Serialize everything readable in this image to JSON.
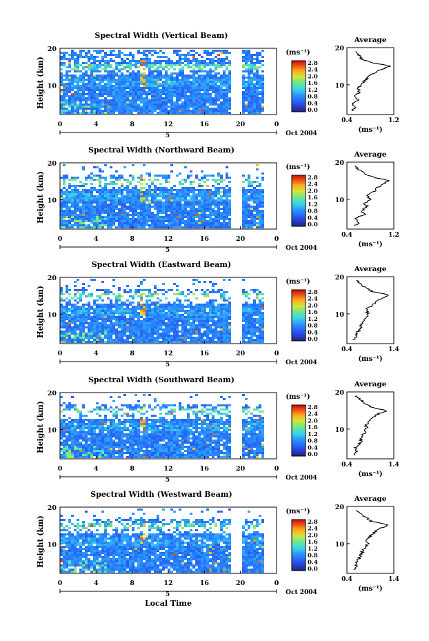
{
  "figure": {
    "xlabel": "Local Time",
    "date_label": "Oct 2004",
    "bracket_label": "5",
    "units_label": "(ms⁻¹)",
    "avg_title": "Average"
  },
  "chart_data": [
    {
      "type": "heatmap",
      "title": "Spectral Width (Vertical Beam)",
      "ylabel": "Height (km)",
      "xlabel": "",
      "x_ticks": [
        "0",
        "4",
        "8",
        "12",
        "16",
        "20",
        "0"
      ],
      "y_ticks": [
        "10",
        "20"
      ],
      "xlim": [
        0,
        24
      ],
      "ylim": [
        2,
        20
      ],
      "colorbar": {
        "label": "(ms⁻¹)",
        "ticks": [
          "0.0",
          "0.4",
          "0.8",
          "1.2",
          "1.6",
          "2.0",
          "2.4",
          "2.8"
        ],
        "range": [
          0,
          2.8
        ]
      },
      "data_gap_hours": [
        18.8,
        20
      ],
      "average_profile": {
        "title": "Average",
        "xlabel": "(ms⁻¹)",
        "x_ticks": [
          "0.4",
          "1.2"
        ],
        "xlim": [
          0.4,
          1.2
        ],
        "y_ticks": [
          "10",
          "20"
        ],
        "height_km": [
          3,
          4,
          5,
          6,
          7,
          8,
          9,
          10,
          11,
          12,
          13,
          14,
          15,
          16,
          17,
          18,
          19
        ],
        "width_ms": [
          0.5,
          0.55,
          0.5,
          0.6,
          0.55,
          0.62,
          0.58,
          0.65,
          0.7,
          0.75,
          0.85,
          0.95,
          1.15,
          0.8,
          0.65,
          0.6,
          0.55
        ]
      }
    },
    {
      "type": "heatmap",
      "title": "Spectral Width (Northward Beam)",
      "ylabel": "Height (km)",
      "xlabel": "",
      "x_ticks": [
        "0",
        "4",
        "8",
        "12",
        "16",
        "20",
        "0"
      ],
      "y_ticks": [
        "10",
        "20"
      ],
      "xlim": [
        0,
        24
      ],
      "ylim": [
        2,
        20
      ],
      "colorbar": {
        "label": "(ms⁻¹)",
        "ticks": [
          "0.0",
          "0.4",
          "0.8",
          "1.2",
          "1.6",
          "2.0",
          "2.4",
          "2.8"
        ],
        "range": [
          0,
          2.8
        ]
      },
      "data_gap_hours": [
        18.8,
        20
      ],
      "average_profile": {
        "title": "Average",
        "xlabel": "(ms⁻¹)",
        "x_ticks": [
          "0.4",
          "1.2"
        ],
        "xlim": [
          0.4,
          1.2
        ],
        "y_ticks": [
          "10",
          "20"
        ],
        "height_km": [
          3,
          4,
          5,
          6,
          7,
          8,
          9,
          10,
          11,
          12,
          13,
          14,
          15,
          16,
          17,
          18,
          19
        ],
        "width_ms": [
          0.55,
          0.6,
          0.55,
          0.7,
          0.65,
          0.75,
          0.7,
          0.8,
          0.75,
          0.85,
          0.9,
          1.0,
          1.1,
          0.85,
          0.7,
          0.6,
          0.55
        ]
      }
    },
    {
      "type": "heatmap",
      "title": "Spectral Width (Eastward Beam)",
      "ylabel": "Height (km)",
      "xlabel": "",
      "x_ticks": [
        "0",
        "4",
        "8",
        "12",
        "16",
        "20",
        "0"
      ],
      "y_ticks": [
        "10",
        "20"
      ],
      "xlim": [
        0,
        24
      ],
      "ylim": [
        2,
        20
      ],
      "colorbar": {
        "label": "(ms⁻¹)",
        "ticks": [
          "0.0",
          "0.4",
          "0.8",
          "1.2",
          "1.6",
          "2.0",
          "2.4",
          "2.8"
        ],
        "range": [
          0,
          2.8
        ]
      },
      "data_gap_hours": [
        18.8,
        20
      ],
      "average_profile": {
        "title": "Average",
        "xlabel": "(ms⁻¹)",
        "x_ticks": [
          "0.4",
          "1.4"
        ],
        "xlim": [
          0.4,
          1.4
        ],
        "y_ticks": [
          "10",
          "20"
        ],
        "height_km": [
          3,
          4,
          5,
          6,
          7,
          8,
          9,
          10,
          11,
          12,
          13,
          14,
          15,
          16,
          17,
          18,
          19
        ],
        "width_ms": [
          0.55,
          0.6,
          0.62,
          0.7,
          0.68,
          0.75,
          0.8,
          0.85,
          0.8,
          0.9,
          1.0,
          1.1,
          1.3,
          0.95,
          0.8,
          0.7,
          0.6
        ]
      }
    },
    {
      "type": "heatmap",
      "title": "Spectral Width (Southward Beam)",
      "ylabel": "Height (km)",
      "xlabel": "",
      "x_ticks": [
        "0",
        "4",
        "8",
        "12",
        "16",
        "20",
        "0"
      ],
      "y_ticks": [
        "10",
        "20"
      ],
      "xlim": [
        0,
        24
      ],
      "ylim": [
        2,
        20
      ],
      "colorbar": {
        "label": "(ms⁻¹)",
        "ticks": [
          "0.0",
          "0.4",
          "0.8",
          "1.2",
          "1.6",
          "2.0",
          "2.4",
          "2.8"
        ],
        "range": [
          0,
          2.8
        ]
      },
      "data_gap_hours": [
        18.8,
        20
      ],
      "average_profile": {
        "title": "Average",
        "xlabel": "(ms⁻¹)",
        "x_ticks": [
          "0.4",
          "1.4"
        ],
        "xlim": [
          0.4,
          1.4
        ],
        "y_ticks": [
          "10",
          "20"
        ],
        "height_km": [
          3,
          4,
          5,
          6,
          7,
          8,
          9,
          10,
          11,
          12,
          13,
          14,
          15,
          16,
          17,
          18,
          19
        ],
        "width_ms": [
          0.55,
          0.6,
          0.58,
          0.68,
          0.7,
          0.72,
          0.78,
          0.82,
          0.8,
          0.88,
          0.95,
          1.05,
          1.25,
          0.9,
          0.78,
          0.68,
          0.6
        ]
      }
    },
    {
      "type": "heatmap",
      "title": "Spectral Width (Westward Beam)",
      "ylabel": "Height (km)",
      "xlabel": "Local Time",
      "x_ticks": [
        "0",
        "4",
        "8",
        "12",
        "16",
        "20",
        "0"
      ],
      "y_ticks": [
        "10",
        "20"
      ],
      "xlim": [
        0,
        24
      ],
      "ylim": [
        2,
        20
      ],
      "colorbar": {
        "label": "(ms⁻¹)",
        "ticks": [
          "0.0",
          "0.4",
          "0.8",
          "1.2",
          "1.6",
          "2.0",
          "2.4",
          "2.8"
        ],
        "range": [
          0,
          2.8
        ]
      },
      "data_gap_hours": [
        18.8,
        20
      ],
      "average_profile": {
        "title": "Average",
        "xlabel": "(ms⁻¹)",
        "x_ticks": [
          "0.4",
          "1.4"
        ],
        "xlim": [
          0.4,
          1.4
        ],
        "y_ticks": [
          "10",
          "20"
        ],
        "height_km": [
          3,
          4,
          5,
          6,
          7,
          8,
          9,
          10,
          11,
          12,
          13,
          14,
          15,
          16,
          17,
          18,
          19
        ],
        "width_ms": [
          0.55,
          0.6,
          0.6,
          0.66,
          0.7,
          0.74,
          0.78,
          0.84,
          0.8,
          0.9,
          0.98,
          1.08,
          1.3,
          0.92,
          0.8,
          0.7,
          0.6
        ]
      }
    }
  ]
}
